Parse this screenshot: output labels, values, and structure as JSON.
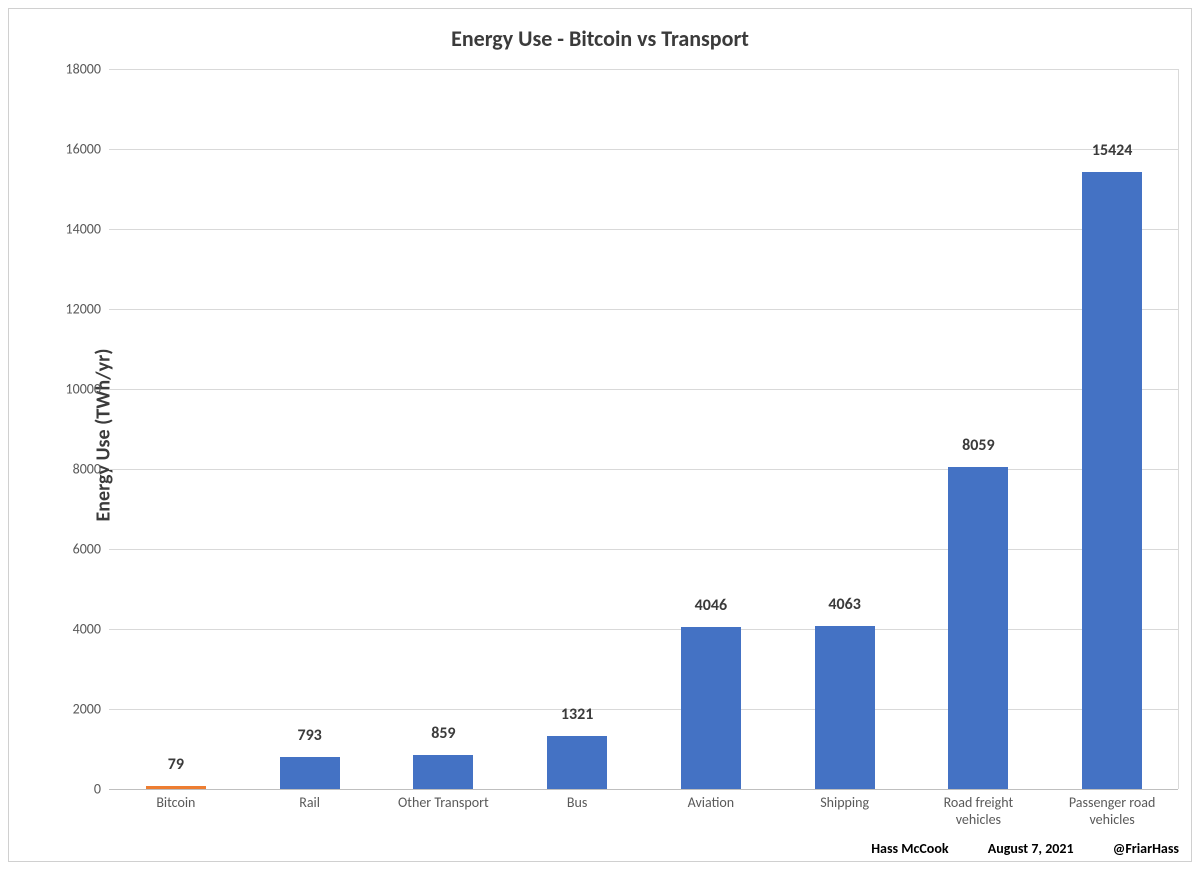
{
  "chart": {
    "type": "bar",
    "title": "Energy Use - Bitcoin vs Transport",
    "title_fontsize": 22,
    "y_axis_label": "Energy Use (TWh/yr)",
    "y_axis_label_fontsize": 20,
    "background_color": "#ffffff",
    "frame_border_color": "#d0d0d0",
    "grid_color": "#d9d9d9",
    "axis_line_color": "#bfbfbf",
    "tick_label_color": "#595959",
    "tick_fontsize": 14,
    "data_label_fontsize": 16,
    "data_label_color": "#3b3b3b",
    "ylim": [
      0,
      18000
    ],
    "ytick_step": 2000,
    "bar_width_ratio": 0.45,
    "categories": [
      "Bitcoin",
      "Rail",
      "Other Transport",
      "Bus",
      "Aviation",
      "Shipping",
      "Road freight\nvehicles",
      "Passenger road\nvehicles"
    ],
    "values": [
      79,
      793,
      859,
      1321,
      4046,
      4063,
      8059,
      15424
    ],
    "bar_colors": [
      "#ed7d31",
      "#4472c4",
      "#4472c4",
      "#4472c4",
      "#4472c4",
      "#4472c4",
      "#4472c4",
      "#4472c4"
    ]
  },
  "footer": {
    "author": "Hass McCook",
    "date": "August 7, 2021",
    "handle": "@FriarHass"
  }
}
